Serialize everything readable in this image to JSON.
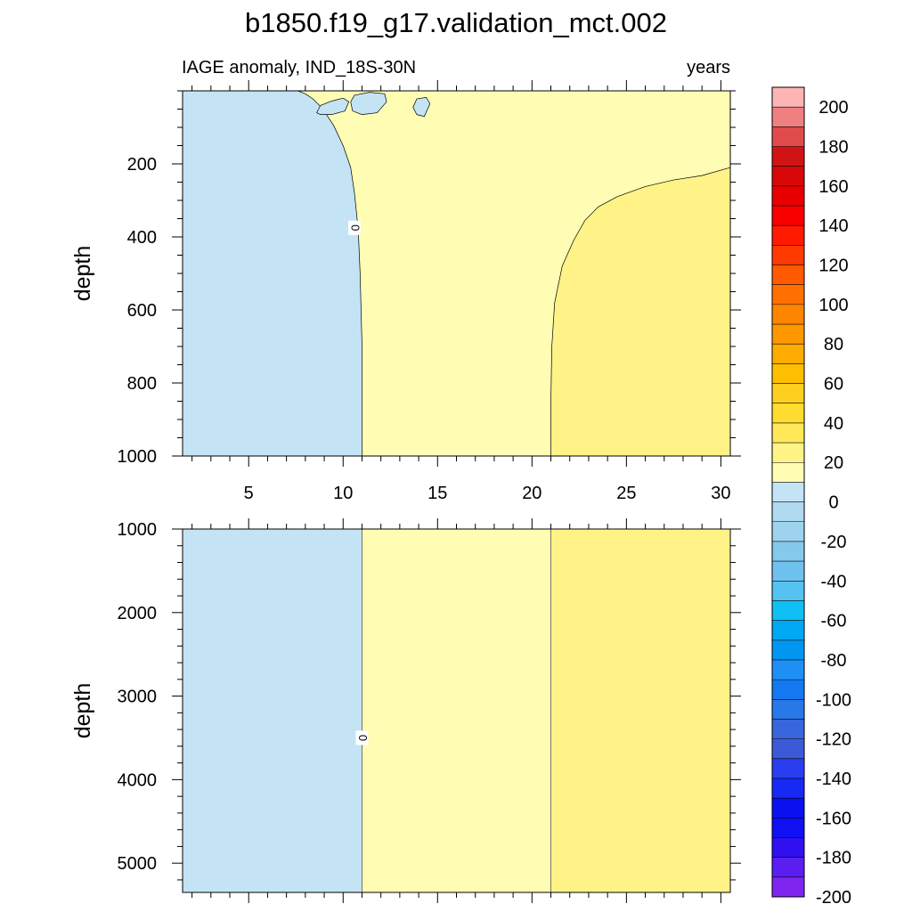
{
  "chart_data": {
    "type": "heatmap",
    "title": "b1850.f19_g17.validation_mct.002",
    "subtitle_left": "IAGE anomaly, IND_18S-30N",
    "subtitle_right": "years",
    "x": {
      "range": [
        1.5,
        30.5
      ],
      "ticks": [
        5,
        10,
        15,
        20,
        25,
        30
      ],
      "tick_labels": [
        "5",
        "10",
        "15",
        "20",
        "25",
        "30"
      ]
    },
    "upper_panel": {
      "ylabel": "depth",
      "ylim": [
        0,
        1000
      ],
      "ticks": [
        200,
        400,
        600,
        800,
        1000
      ],
      "tick_labels": [
        "200",
        "400",
        "600",
        "800",
        "1000"
      ]
    },
    "lower_panel": {
      "ylabel": "depth",
      "ylim": [
        1000,
        5350
      ],
      "ticks": [
        1000,
        2000,
        3000,
        4000,
        5000
      ],
      "tick_labels": [
        "1000",
        "2000",
        "3000",
        "4000",
        "5000"
      ]
    },
    "regions": [
      {
        "range": "-10 to 0",
        "color": "#c4e4f5",
        "x_span": [
          1.5,
          11.0
        ]
      },
      {
        "range": "0 to 10",
        "color": "#fffcb4",
        "x_span": [
          11.0,
          21.0
        ]
      },
      {
        "range": "10 to 20",
        "color": "#fff387",
        "x_span": [
          21.0,
          30.5
        ]
      }
    ],
    "contour_label": "0",
    "colorbar": {
      "tick_labels": [
        "200",
        "180",
        "160",
        "140",
        "120",
        "100",
        "80",
        "60",
        "40",
        "20",
        "0",
        "-20",
        "-40",
        "-60",
        "-80",
        "-100",
        "-120",
        "-140",
        "-160",
        "-180",
        "-200"
      ],
      "colors": [
        "#fdb4b4",
        "#f08080",
        "#e04c4c",
        "#d01414",
        "#d80808",
        "#e80000",
        "#f80000",
        "#ff1a00",
        "#ff3a00",
        "#ff5a00",
        "#ff7000",
        "#ff8400",
        "#ff9800",
        "#ffac00",
        "#ffbf00",
        "#ffcf20",
        "#ffdc30",
        "#ffe85a",
        "#fff387",
        "#fffcb4",
        "#c4e4f5",
        "#b0daf0",
        "#9dd3ee",
        "#85c9ec",
        "#70c2ee",
        "#55c2f2",
        "#10c0f4",
        "#00a8f2",
        "#0096f0",
        "#1e90f5",
        "#1478f0",
        "#2878e8",
        "#3866dc",
        "#3c5ad8",
        "#2a3ef0",
        "#1828f5",
        "#0a10f0",
        "#1010f5",
        "#3010f0",
        "#5a1ef0",
        "#8025f0"
      ]
    }
  }
}
